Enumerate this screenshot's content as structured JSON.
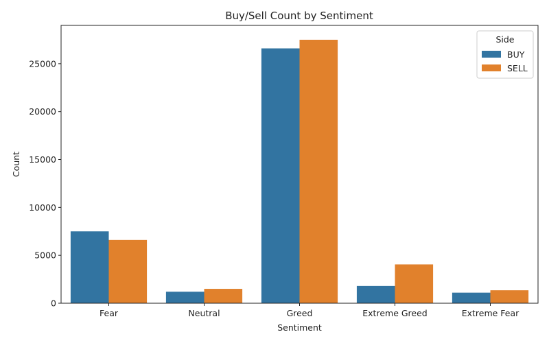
{
  "chart_data": {
    "type": "bar",
    "title": "Buy/Sell Count by Sentiment",
    "xlabel": "Sentiment",
    "ylabel": "Count",
    "categories": [
      "Fear",
      "Neutral",
      "Greed",
      "Extreme Greed",
      "Extreme Fear"
    ],
    "series": [
      {
        "name": "BUY",
        "color": "#3274a1",
        "values": [
          7500,
          1200,
          26600,
          1800,
          1100
        ]
      },
      {
        "name": "SELL",
        "color": "#e1812c",
        "values": [
          6600,
          1500,
          27500,
          4050,
          1350
        ]
      }
    ],
    "ylim": [
      0,
      29000
    ],
    "yticks": [
      0,
      5000,
      10000,
      15000,
      20000,
      25000
    ],
    "grid": false,
    "legend": {
      "title": "Side",
      "placement": "top-right"
    }
  }
}
